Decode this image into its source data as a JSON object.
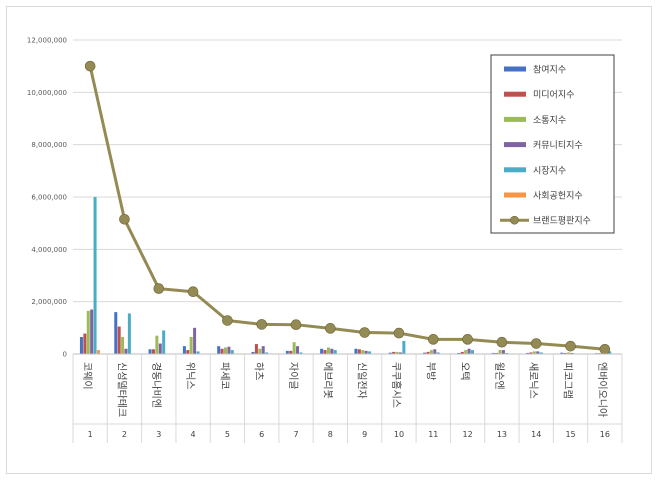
{
  "chart_data": {
    "type": "bar",
    "title": "",
    "xlabel": "",
    "ylabel": "",
    "ylim": [
      0,
      12000000
    ],
    "yticks": [
      "0",
      "2,000,000",
      "4,000,000",
      "6,000,000",
      "8,000,000",
      "10,000,000",
      "12,000,000"
    ],
    "grid": true,
    "legend_position": "top-right",
    "categories": [
      "코웨이",
      "신성델타테크",
      "경동나비엔",
      "위닉스",
      "파세코",
      "하츠",
      "자이글",
      "에브리봇",
      "신일전자",
      "쿠쿠홈시스",
      "부방",
      "오텍",
      "윌슨엔",
      "새로닉스",
      "피코그램",
      "엔바이오니아"
    ],
    "category_numbers": [
      "1",
      "2",
      "3",
      "4",
      "5",
      "6",
      "7",
      "8",
      "9",
      "10",
      "11",
      "12",
      "13",
      "14",
      "15",
      "16"
    ],
    "series": [
      {
        "name": "참여지수",
        "type": "bar",
        "color": "#4472c4",
        "values": [
          650000,
          1600000,
          180000,
          300000,
          300000,
          80000,
          120000,
          200000,
          200000,
          50000,
          50000,
          40000,
          40000,
          40000,
          50000,
          30000
        ]
      },
      {
        "name": "미디어지수",
        "type": "bar",
        "color": "#c0504d",
        "values": [
          780000,
          1050000,
          180000,
          150000,
          200000,
          380000,
          120000,
          150000,
          180000,
          80000,
          80000,
          80000,
          40000,
          60000,
          40000,
          30000
        ]
      },
      {
        "name": "소통지수",
        "type": "bar",
        "color": "#9bbb59",
        "values": [
          1650000,
          650000,
          700000,
          650000,
          250000,
          200000,
          450000,
          250000,
          150000,
          80000,
          150000,
          150000,
          150000,
          100000,
          60000,
          30000
        ]
      },
      {
        "name": "커뮤니티지수",
        "type": "bar",
        "color": "#8064a2",
        "values": [
          1700000,
          200000,
          400000,
          1000000,
          280000,
          300000,
          300000,
          200000,
          120000,
          60000,
          180000,
          200000,
          150000,
          100000,
          40000,
          20000
        ]
      },
      {
        "name": "시장지수",
        "type": "bar",
        "color": "#4bacc6",
        "values": [
          6000000,
          1550000,
          900000,
          100000,
          150000,
          60000,
          60000,
          150000,
          100000,
          500000,
          60000,
          150000,
          40000,
          60000,
          20000,
          100000
        ]
      },
      {
        "name": "사회공헌지수",
        "type": "bar",
        "color": "#f79646",
        "values": [
          150000,
          20000,
          20000,
          20000,
          20000,
          10000,
          10000,
          10000,
          10000,
          10000,
          10000,
          10000,
          10000,
          10000,
          10000,
          10000
        ]
      },
      {
        "name": "브랜드평판지수",
        "type": "line",
        "color": "#948a54",
        "values": [
          11000000,
          5150000,
          2500000,
          2380000,
          1280000,
          1130000,
          1120000,
          980000,
          820000,
          800000,
          560000,
          560000,
          450000,
          400000,
          300000,
          180000
        ]
      }
    ]
  }
}
